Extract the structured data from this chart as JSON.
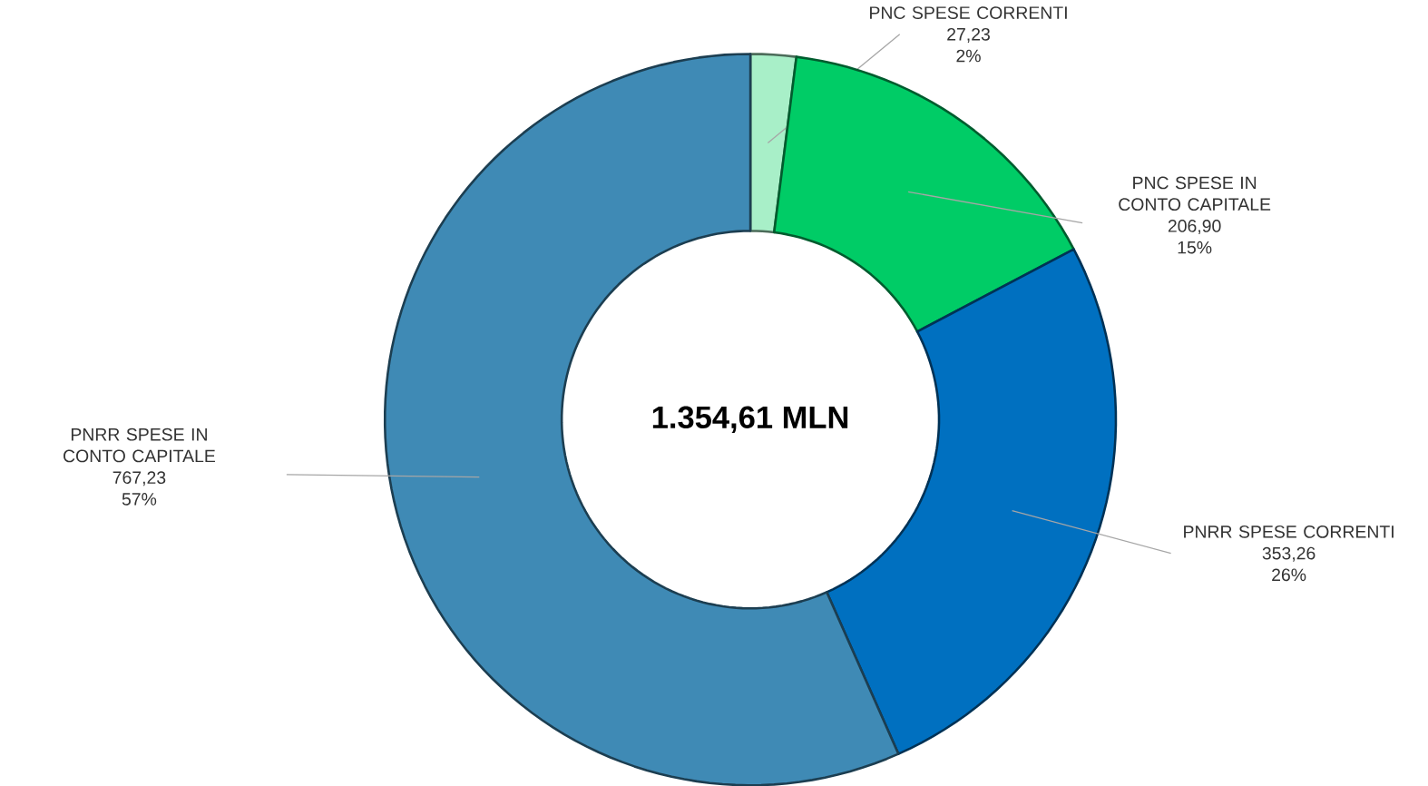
{
  "chart_data": {
    "type": "donut",
    "categories": [
      "PNC SPESE CORRENTI",
      "PNC SPESE IN CONTO CAPITALE",
      "PNRR SPESE CORRENTI",
      "PNRR SPESE IN CONTO CAPITALE"
    ],
    "values": [
      27.23,
      206.9,
      353.26,
      767.23
    ],
    "value_labels": [
      "27,23",
      "206,90",
      "353,26",
      "767,23"
    ],
    "colors": [
      "#a8efc8",
      "#00cc66",
      "#0070c0",
      "#3f8ab5"
    ],
    "annotations": [
      "1.354,61 MLN",
      "2%",
      "15%",
      "26%",
      "57%"
    ]
  }
}
